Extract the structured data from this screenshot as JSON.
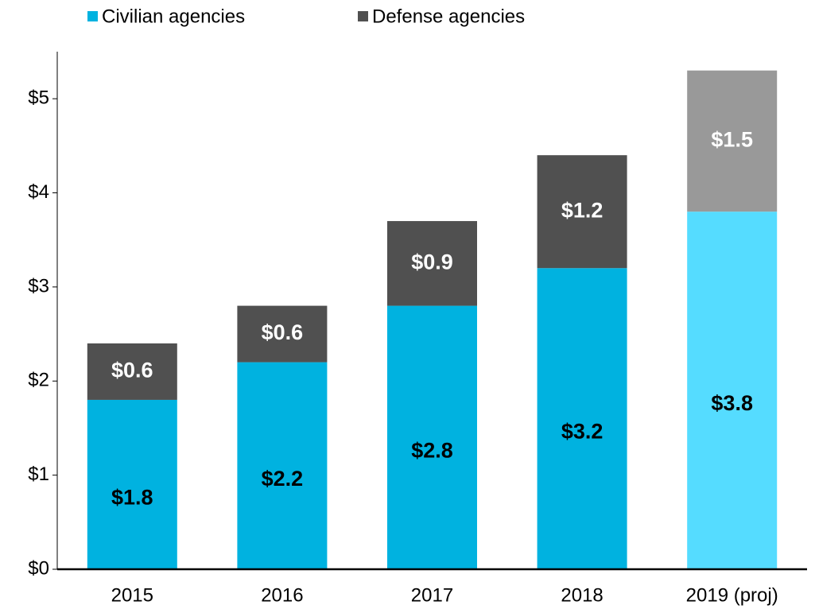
{
  "chart_data": {
    "type": "stacked_bar",
    "categories": [
      "2015",
      "2016",
      "2017",
      "2018",
      "2019 (proj)"
    ],
    "series": [
      {
        "name": "Civilian agencies",
        "color": "#00b2e0",
        "colors": [
          "#00b2e0",
          "#00b2e0",
          "#00b2e0",
          "#00b2e0",
          "#55dcff"
        ],
        "label_color": "#000000",
        "values": [
          1.8,
          2.2,
          2.8,
          3.2,
          3.8
        ],
        "value_labels": [
          "$1.8",
          "$2.2",
          "$2.8",
          "$3.2",
          "$3.8"
        ]
      },
      {
        "name": "Defense agencies",
        "color": "#505050",
        "colors": [
          "#505050",
          "#505050",
          "#505050",
          "#505050",
          "#999999"
        ],
        "label_color": "#ffffff",
        "values": [
          0.6,
          0.6,
          0.9,
          1.2,
          1.5
        ],
        "value_labels": [
          "$0.6",
          "$0.6",
          "$0.9",
          "$1.2",
          "$1.5"
        ]
      }
    ],
    "ylim": [
      0,
      5.5
    ],
    "yticks": [
      {
        "value": 0,
        "label": "$0"
      },
      {
        "value": 1,
        "label": "$1"
      },
      {
        "value": 2,
        "label": "$2"
      },
      {
        "value": 3,
        "label": "$3"
      },
      {
        "value": 4,
        "label": "$4"
      },
      {
        "value": 5,
        "label": "$5"
      }
    ],
    "legend": "top"
  }
}
